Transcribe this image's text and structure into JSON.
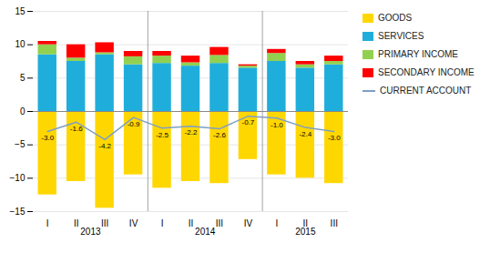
{
  "chart_data": {
    "type": "bar",
    "stacked": true,
    "categories": [
      "I",
      "II",
      "III",
      "IV",
      "I",
      "II",
      "III",
      "IV",
      "I",
      "II",
      "III"
    ],
    "annotations": [
      "2013",
      "2014",
      "2015"
    ],
    "series": [
      {
        "name": "GOODS",
        "color": "#FFD700",
        "values": [
          -12.5,
          -10.5,
          -14.5,
          -9.5,
          -11.5,
          -10.5,
          -10.8,
          -7.2,
          -9.5,
          -10.0,
          -10.8
        ]
      },
      {
        "name": "SERVICES",
        "color": "#1FAEDB",
        "values": [
          8.5,
          7.5,
          8.5,
          7.0,
          7.2,
          6.8,
          7.2,
          6.5,
          7.5,
          6.5,
          7.0
        ]
      },
      {
        "name": "PRIMARY INCOME",
        "color": "#92D050",
        "values": [
          1.5,
          0.5,
          0.3,
          1.2,
          1.1,
          0.5,
          1.2,
          0.3,
          1.2,
          0.5,
          0.5
        ]
      },
      {
        "name": "SECONDARY INCOME",
        "color": "#FF0000",
        "values": [
          0.5,
          2.0,
          1.5,
          0.8,
          0.7,
          1.0,
          1.2,
          0.2,
          0.6,
          0.5,
          0.8
        ]
      },
      {
        "name": "CURRENT ACCOUNT",
        "type": "line",
        "color": "#7F9EC4",
        "values": [
          -3.0,
          -1.6,
          -4.2,
          -0.9,
          -2.5,
          -2.2,
          -2.6,
          -0.7,
          -1.0,
          -2.4,
          -3.0
        ],
        "value_labels": [
          "-3.0",
          "-1.6",
          "-4.2",
          "-0.9",
          "-2.5",
          "-2.2",
          "-2.6",
          "-0.7",
          "-1.0",
          "-2.4",
          "-3.0"
        ]
      }
    ],
    "data_labels": true,
    "ylim": [
      -15.0,
      15.0
    ],
    "yticks": [
      -15.0,
      -10.0,
      -5.0,
      0.0,
      5.0,
      10.0,
      15.0
    ],
    "grid": true,
    "legend": "right"
  }
}
